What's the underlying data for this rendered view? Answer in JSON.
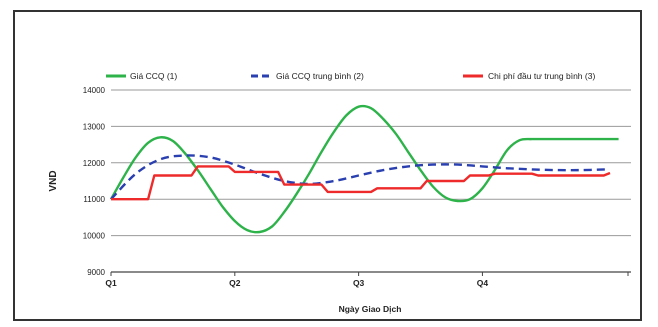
{
  "chart_data": {
    "type": "line",
    "xlabel": "Ngày Giao Dịch",
    "ylabel": "VND",
    "x_ticks": [
      "Q1",
      "Q2",
      "Q3",
      "Q4"
    ],
    "x_range": [
      0,
      4.2
    ],
    "x_tick_positions": [
      0,
      1,
      2,
      3
    ],
    "ylim": [
      9000,
      14000
    ],
    "y_ticks": [
      9000,
      10000,
      11000,
      12000,
      13000,
      14000
    ],
    "y_tick_labels": [
      "9000",
      "10000",
      "11000",
      "12000",
      "13000",
      "14000"
    ],
    "grid": "horizontal",
    "legend": "top",
    "series": [
      {
        "name": "Giá CCQ (1)",
        "color": "#2db34a",
        "style": "solid",
        "x": [
          0,
          0.1,
          0.2,
          0.3,
          0.4,
          0.5,
          0.6,
          0.7,
          0.8,
          0.9,
          1.0,
          1.1,
          1.2,
          1.3,
          1.4,
          1.5,
          1.6,
          1.7,
          1.8,
          1.9,
          2.0,
          2.1,
          2.2,
          2.3,
          2.4,
          2.5,
          2.6,
          2.7,
          2.8,
          2.9,
          3.0,
          3.1,
          3.2,
          3.3,
          3.4,
          3.5,
          3.6,
          3.7,
          3.8,
          3.9,
          4.0,
          4.1
        ],
        "values": [
          11000,
          11600,
          12150,
          12550,
          12700,
          12600,
          12250,
          11800,
          11300,
          10800,
          10400,
          10150,
          10100,
          10250,
          10650,
          11150,
          11700,
          12300,
          12850,
          13300,
          13540,
          13500,
          13200,
          12800,
          12300,
          11800,
          11350,
          11050,
          10950,
          11000,
          11300,
          11800,
          12350,
          12620,
          12650,
          12650,
          12650,
          12650,
          12650,
          12650,
          12650,
          12650
        ]
      },
      {
        "name": "Giá CCQ trung bình (2)",
        "color": "#2a3fb0",
        "style": "dashed",
        "x": [
          0,
          0.2,
          0.4,
          0.6,
          0.8,
          1.0,
          1.2,
          1.4,
          1.6,
          1.8,
          2.0,
          2.2,
          2.4,
          2.6,
          2.8,
          3.0,
          3.2,
          3.4,
          3.6,
          3.8,
          4.0
        ],
        "values": [
          11000,
          11700,
          12100,
          12200,
          12150,
          11950,
          11700,
          11500,
          11420,
          11500,
          11650,
          11800,
          11900,
          11950,
          11950,
          11900,
          11850,
          11820,
          11800,
          11800,
          11820
        ]
      },
      {
        "name": "Chi phí đầu tư trung bình (3)",
        "color": "#ee2a2a",
        "style": "step",
        "x": [
          0,
          0.3,
          0.35,
          0.65,
          0.7,
          0.95,
          1.0,
          1.35,
          1.4,
          1.7,
          1.75,
          2.1,
          2.15,
          2.5,
          2.55,
          2.85,
          2.9,
          3.05,
          3.1,
          3.4,
          3.45,
          3.95,
          3.98,
          4.03
        ],
        "values": [
          11000,
          11000,
          11650,
          11650,
          11900,
          11900,
          11750,
          11750,
          11400,
          11400,
          11200,
          11200,
          11300,
          11300,
          11500,
          11500,
          11650,
          11650,
          11700,
          11700,
          11650,
          11650,
          11650,
          11720
        ]
      }
    ]
  }
}
